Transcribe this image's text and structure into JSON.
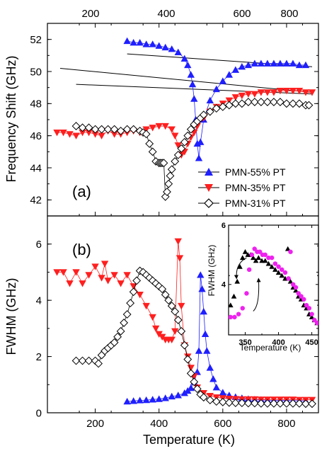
{
  "figure": {
    "top_axis_ticks": [
      "200",
      "400",
      "600",
      "800"
    ],
    "x_label": "Temperature (K)"
  },
  "legend": [
    "PMN-55% PT",
    "PMN-35% PT",
    "PMN-31% PT"
  ],
  "colors": {
    "pt55": "#1f1fff",
    "pt35": "#ff1f1f",
    "pt31": "#000000",
    "inset_magenta": "#ee22ee"
  },
  "chart_data": [
    {
      "type": "scatter",
      "panel_label": "(a)",
      "ylabel": "Frequency Shift (GHz)",
      "xlabel": "",
      "xlim": [
        50,
        900
      ],
      "ylim": [
        41,
        53
      ],
      "x_ticks": [
        200,
        400,
        600,
        800
      ],
      "y_ticks": [
        42,
        44,
        46,
        48,
        50,
        52
      ],
      "legend_position": "lower-right",
      "series": [
        {
          "name": "PMN-55% PT",
          "marker": "triangle-up",
          "x": [
            300,
            320,
            340,
            360,
            380,
            400,
            420,
            440,
            460,
            480,
            490,
            500,
            505,
            510,
            515,
            520,
            525,
            530,
            540,
            560,
            580,
            600,
            620,
            640,
            660,
            680,
            700,
            720,
            740,
            760,
            780,
            800,
            820,
            840,
            860
          ],
          "y": [
            51.9,
            51.8,
            51.8,
            51.7,
            51.7,
            51.6,
            51.5,
            51.4,
            51.2,
            50.8,
            50.4,
            49.8,
            49.2,
            48.3,
            47.0,
            45.5,
            44.6,
            45.6,
            47.0,
            48.2,
            48.9,
            49.4,
            49.8,
            50.1,
            50.3,
            50.4,
            50.5,
            50.5,
            50.5,
            50.5,
            50.5,
            50.5,
            50.5,
            50.4,
            50.4
          ]
        },
        {
          "name": "PMN-35% PT",
          "marker": "triangle-down",
          "x": [
            80,
            100,
            120,
            140,
            160,
            180,
            200,
            220,
            240,
            260,
            280,
            300,
            320,
            340,
            360,
            380,
            400,
            420,
            440,
            450,
            460,
            470,
            480,
            490,
            500,
            510,
            520,
            540,
            560,
            580,
            600,
            620,
            640,
            660,
            680,
            700,
            720,
            740,
            760,
            780,
            800,
            820,
            840,
            860,
            880
          ],
          "y": [
            46.2,
            46.2,
            46.1,
            46.0,
            46.2,
            46.2,
            46.1,
            46.0,
            46.3,
            46.1,
            46.1,
            46.2,
            46.3,
            46.2,
            46.4,
            46.5,
            46.6,
            46.6,
            46.4,
            46.0,
            45.4,
            44.8,
            45.0,
            45.5,
            45.9,
            46.2,
            46.6,
            47.1,
            47.5,
            47.8,
            48.0,
            48.2,
            48.4,
            48.5,
            48.6,
            48.6,
            48.7,
            48.7,
            48.7,
            48.8,
            48.8,
            48.8,
            48.8,
            48.7,
            48.7
          ]
        },
        {
          "name": "PMN-31% PT",
          "marker": "diamond-open",
          "x": [
            140,
            160,
            180,
            200,
            220,
            240,
            260,
            280,
            300,
            320,
            340,
            350,
            360,
            370,
            380,
            390,
            400,
            405,
            410,
            415,
            420,
            425,
            430,
            435,
            440,
            450,
            460,
            470,
            480,
            490,
            500,
            510,
            520,
            530,
            540,
            560,
            580,
            600,
            620,
            640,
            660,
            680,
            700,
            720,
            740,
            760,
            780,
            800,
            820,
            840,
            860,
            870
          ],
          "y": [
            46.6,
            46.5,
            46.5,
            46.4,
            46.4,
            46.4,
            46.4,
            46.3,
            46.4,
            46.4,
            46.3,
            46.2,
            46.1,
            45.5,
            45.0,
            44.4,
            44.3,
            44.3,
            44.3,
            44.3,
            42.2,
            42.5,
            43.0,
            43.5,
            43.9,
            44.4,
            44.8,
            45.2,
            45.6,
            46.0,
            46.4,
            46.7,
            46.9,
            47.1,
            47.3,
            47.5,
            47.7,
            47.8,
            47.9,
            48.0,
            48.0,
            48.1,
            48.1,
            48.1,
            48.1,
            48.1,
            48.1,
            48.0,
            48.0,
            48.0,
            47.9,
            47.9
          ]
        }
      ],
      "fit_lines": [
        {
          "x": [
            300,
            880
          ],
          "y": [
            51.1,
            50.3
          ]
        },
        {
          "x": [
            90,
            880
          ],
          "y": [
            50.2,
            48.7
          ]
        },
        {
          "x": [
            140,
            880
          ],
          "y": [
            49.2,
            48.6
          ]
        }
      ]
    },
    {
      "type": "scatter",
      "panel_label": "(b)",
      "ylabel": "FWHM (GHz)",
      "xlabel": "Temperature (K)",
      "xlim": [
        50,
        900
      ],
      "ylim": [
        0,
        7
      ],
      "x_ticks": [
        200,
        400,
        600,
        800
      ],
      "y_ticks": [
        0,
        2,
        4,
        6
      ],
      "series": [
        {
          "name": "PMN-55% PT",
          "marker": "triangle-up",
          "x": [
            300,
            320,
            340,
            360,
            380,
            400,
            420,
            440,
            460,
            480,
            490,
            500,
            510,
            520,
            525,
            530,
            535,
            540,
            545,
            550,
            560,
            570,
            580,
            600,
            620,
            640,
            660,
            680,
            700,
            720,
            740,
            760,
            780,
            800,
            820,
            840,
            860
          ],
          "y": [
            0.4,
            0.42,
            0.44,
            0.45,
            0.47,
            0.49,
            0.52,
            0.58,
            0.62,
            0.7,
            0.78,
            0.88,
            1.1,
            1.45,
            2.2,
            4.9,
            4.4,
            3.6,
            2.8,
            2.2,
            1.6,
            1.2,
            0.9,
            0.72,
            0.62,
            0.56,
            0.52,
            0.49,
            0.47,
            0.46,
            0.45,
            0.44,
            0.44,
            0.44,
            0.43,
            0.43,
            0.42
          ]
        },
        {
          "name": "PMN-35% PT",
          "marker": "triangle-down",
          "x": [
            80,
            100,
            120,
            140,
            160,
            180,
            200,
            220,
            230,
            240,
            260,
            280,
            300,
            320,
            340,
            360,
            380,
            390,
            400,
            410,
            420,
            430,
            440,
            450,
            460,
            465,
            470,
            480,
            490,
            500,
            510,
            520,
            540,
            560,
            580,
            600,
            620,
            640,
            660,
            680,
            700,
            720,
            740,
            760,
            780,
            800,
            820,
            840,
            860,
            880
          ],
          "y": [
            5.0,
            5.0,
            4.6,
            5.0,
            4.6,
            4.9,
            5.2,
            4.8,
            5.3,
            4.7,
            4.9,
            4.6,
            4.9,
            4.5,
            4.2,
            3.8,
            3.4,
            3.0,
            2.8,
            2.7,
            2.6,
            2.6,
            2.6,
            2.9,
            6.1,
            5.5,
            3.8,
            2.4,
            2.0,
            1.6,
            1.3,
            0.9,
            0.7,
            0.6,
            0.55,
            0.52,
            0.5,
            0.49,
            0.48,
            0.48,
            0.48,
            0.47,
            0.47,
            0.47,
            0.47,
            0.47,
            0.47,
            0.46,
            0.46,
            0.46
          ]
        },
        {
          "name": "PMN-31% PT",
          "marker": "diamond-open",
          "x": [
            140,
            160,
            180,
            200,
            210,
            220,
            230,
            240,
            250,
            260,
            270,
            280,
            290,
            300,
            310,
            320,
            330,
            340,
            350,
            360,
            370,
            380,
            390,
            400,
            410,
            420,
            430,
            440,
            450,
            460,
            470,
            480,
            490,
            500,
            510,
            520,
            530,
            540,
            560,
            580,
            600,
            620,
            640,
            660,
            680,
            700,
            720,
            740,
            760,
            780,
            800,
            820,
            840,
            860,
            880
          ],
          "y": [
            1.85,
            1.85,
            1.85,
            1.85,
            1.75,
            2.05,
            2.2,
            2.3,
            2.4,
            2.5,
            2.7,
            2.9,
            3.2,
            3.5,
            3.9,
            4.3,
            4.7,
            5.05,
            5.0,
            4.9,
            4.8,
            4.7,
            4.6,
            4.5,
            4.4,
            4.2,
            4.0,
            3.8,
            3.6,
            3.3,
            2.9,
            2.4,
            1.9,
            1.4,
            1.1,
            0.85,
            0.65,
            0.55,
            0.45,
            0.4,
            0.38,
            0.36,
            0.35,
            0.35,
            0.34,
            0.34,
            0.33,
            0.33,
            0.33,
            0.33,
            0.33,
            0.33,
            0.33,
            0.32,
            0.32
          ]
        }
      ]
    },
    {
      "type": "scatter",
      "panel_label": "inset",
      "ylabel": "FWHM (GHz)",
      "xlabel": "Temperature (K)",
      "xlim": [
        325,
        460
      ],
      "ylim": [
        2.3,
        6
      ],
      "x_ticks": [
        350,
        400,
        450
      ],
      "y_ticks": [
        4,
        6
      ],
      "series": [
        {
          "name": "",
          "marker": "triangle-up-black",
          "x": [
            328,
            333,
            338,
            342,
            346,
            350,
            354,
            358,
            362,
            366,
            370,
            375,
            380,
            385,
            390,
            395,
            400,
            405,
            410,
            414,
            418,
            422,
            426,
            430,
            434,
            438,
            442,
            446,
            450,
            454,
            458
          ],
          "y": [
            3.3,
            3.6,
            4.1,
            4.6,
            4.9,
            5.1,
            5.0,
            5.0,
            4.9,
            4.8,
            4.9,
            4.8,
            4.8,
            4.7,
            4.6,
            4.5,
            4.4,
            4.3,
            4.2,
            5.2,
            4.1,
            3.9,
            3.8,
            3.6,
            3.5,
            3.3,
            3.2,
            3.0,
            2.9,
            2.8,
            2.7
          ]
        },
        {
          "name": "",
          "marker": "circle-magenta",
          "x": [
            328,
            334,
            340,
            346,
            352,
            356,
            360,
            364,
            368,
            372,
            376,
            380,
            385,
            390,
            395,
            400,
            405,
            410,
            415,
            418,
            422,
            426,
            430,
            434,
            438,
            442,
            446,
            450,
            454,
            458
          ],
          "y": [
            2.9,
            2.9,
            3.0,
            3.2,
            3.7,
            4.5,
            5.0,
            5.2,
            5.1,
            5.1,
            5.0,
            5.0,
            4.9,
            4.9,
            4.7,
            4.6,
            4.5,
            4.4,
            4.2,
            5.1,
            4.0,
            3.9,
            3.7,
            3.6,
            3.5,
            3.3,
            3.2,
            3.0,
            2.8,
            2.7
          ]
        }
      ]
    }
  ]
}
